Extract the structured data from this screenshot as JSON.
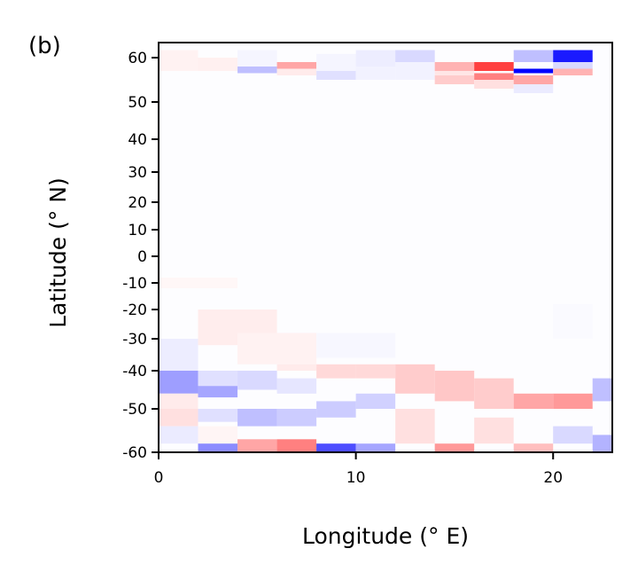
{
  "panel_label": "(b)",
  "chart_data": {
    "type": "heatmap",
    "title": "",
    "xlabel": "Longitude (° E)",
    "ylabel": "Latitude (° N)",
    "xlim": [
      0,
      23
    ],
    "ylim": [
      -60,
      64
    ],
    "y_scale": "nonlinear (equatorial band compressed, polar bands stretched)",
    "x_ticks": [
      {
        "value": 0,
        "label": "0"
      },
      {
        "value": 10,
        "label": "10"
      },
      {
        "value": 20,
        "label": "20"
      }
    ],
    "y_ticks": [
      {
        "value": 60,
        "label": "60"
      },
      {
        "value": 50,
        "label": "50"
      },
      {
        "value": 40,
        "label": "40"
      },
      {
        "value": 30,
        "label": "30"
      },
      {
        "value": 20,
        "label": "20"
      },
      {
        "value": 10,
        "label": "10"
      },
      {
        "value": 0,
        "label": "0"
      },
      {
        "value": -10,
        "label": "-10"
      },
      {
        "value": -20,
        "label": "-20"
      },
      {
        "value": -30,
        "label": "-30"
      },
      {
        "value": -40,
        "label": "-40"
      },
      {
        "value": -50,
        "label": "-50"
      },
      {
        "value": -60,
        "label": "-60"
      }
    ],
    "colormap": "bwr",
    "color_low": "#0000ff",
    "color_mid": "#ffffff",
    "color_high": "#ff0000",
    "value_range": [
      -1,
      1
    ],
    "grid": false,
    "cells": [
      {
        "lon": [
          0,
          2
        ],
        "lat": [
          57,
          62
        ],
        "v": 0.05
      },
      {
        "lon": [
          2,
          4
        ],
        "lat": [
          57,
          60
        ],
        "v": 0.06
      },
      {
        "lon": [
          4,
          6
        ],
        "lat": [
          56.5,
          58
        ],
        "v": -0.25
      },
      {
        "lon": [
          4,
          6
        ],
        "lat": [
          58,
          62
        ],
        "v": -0.04
      },
      {
        "lon": [
          6,
          8
        ],
        "lat": [
          57.5,
          59
        ],
        "v": 0.35
      },
      {
        "lon": [
          6,
          8
        ],
        "lat": [
          56,
          57.5
        ],
        "v": 0.08
      },
      {
        "lon": [
          8,
          10
        ],
        "lat": [
          55,
          57
        ],
        "v": -0.12
      },
      {
        "lon": [
          8,
          10
        ],
        "lat": [
          57,
          61
        ],
        "v": -0.04
      },
      {
        "lon": [
          10,
          12
        ],
        "lat": [
          58,
          62
        ],
        "v": -0.07
      },
      {
        "lon": [
          10,
          12
        ],
        "lat": [
          55,
          58
        ],
        "v": -0.05
      },
      {
        "lon": [
          12,
          14
        ],
        "lat": [
          59,
          62
        ],
        "v": -0.15
      },
      {
        "lon": [
          12,
          14
        ],
        "lat": [
          55,
          59
        ],
        "v": -0.05
      },
      {
        "lon": [
          14,
          16
        ],
        "lat": [
          57,
          59
        ],
        "v": 0.3
      },
      {
        "lon": [
          14,
          16
        ],
        "lat": [
          54,
          56
        ],
        "v": 0.2
      },
      {
        "lon": [
          14,
          16
        ],
        "lat": [
          56,
          57
        ],
        "v": 0.1
      },
      {
        "lon": [
          16,
          18
        ],
        "lat": [
          57,
          59
        ],
        "v": 0.75
      },
      {
        "lon": [
          16,
          18
        ],
        "lat": [
          55,
          56.5
        ],
        "v": 0.5
      },
      {
        "lon": [
          16,
          18
        ],
        "lat": [
          53,
          55
        ],
        "v": 0.12
      },
      {
        "lon": [
          18,
          20
        ],
        "lat": [
          59,
          62
        ],
        "v": -0.25
      },
      {
        "lon": [
          18,
          20
        ],
        "lat": [
          56.5,
          57.5
        ],
        "v": -1.0
      },
      {
        "lon": [
          18,
          20
        ],
        "lat": [
          54,
          56
        ],
        "v": 0.35
      },
      {
        "lon": [
          18,
          20
        ],
        "lat": [
          52,
          54
        ],
        "v": -0.08
      },
      {
        "lon": [
          20,
          22
        ],
        "lat": [
          59,
          62
        ],
        "v": -0.9
      },
      {
        "lon": [
          20,
          22
        ],
        "lat": [
          57.5,
          59
        ],
        "v": -0.15
      },
      {
        "lon": [
          20,
          22
        ],
        "lat": [
          56,
          57.5
        ],
        "v": 0.3
      },
      {
        "lon": [
          0,
          4
        ],
        "lat": [
          -12,
          -8
        ],
        "v": 0.03
      },
      {
        "lon": [
          2,
          6
        ],
        "lat": [
          -32,
          -20
        ],
        "v": 0.07
      },
      {
        "lon": [
          4,
          8
        ],
        "lat": [
          -38,
          -28
        ],
        "v": 0.05
      },
      {
        "lon": [
          8,
          12
        ],
        "lat": [
          -36,
          -28
        ],
        "v": -0.03
      },
      {
        "lon": [
          20,
          22
        ],
        "lat": [
          -30,
          -18
        ],
        "v": -0.02
      },
      {
        "lon": [
          0,
          2
        ],
        "lat": [
          -40,
          -30
        ],
        "v": -0.07
      },
      {
        "lon": [
          0,
          2
        ],
        "lat": [
          -46,
          -40
        ],
        "v": -0.38
      },
      {
        "lon": [
          0,
          2
        ],
        "lat": [
          -50,
          -46
        ],
        "v": 0.08
      },
      {
        "lon": [
          0,
          2
        ],
        "lat": [
          -54,
          -50
        ],
        "v": 0.12
      },
      {
        "lon": [
          0,
          2
        ],
        "lat": [
          -58,
          -54
        ],
        "v": -0.08
      },
      {
        "lon": [
          2,
          4
        ],
        "lat": [
          -44,
          -40
        ],
        "v": -0.12
      },
      {
        "lon": [
          2,
          4
        ],
        "lat": [
          -47,
          -44
        ],
        "v": -0.35
      },
      {
        "lon": [
          2,
          4
        ],
        "lat": [
          -53,
          -50
        ],
        "v": -0.12
      },
      {
        "lon": [
          2,
          4
        ],
        "lat": [
          -58,
          -54
        ],
        "v": 0.04
      },
      {
        "lon": [
          2,
          4
        ],
        "lat": [
          -60,
          -58
        ],
        "v": -0.45
      },
      {
        "lon": [
          4,
          6
        ],
        "lat": [
          -45,
          -40
        ],
        "v": -0.15
      },
      {
        "lon": [
          4,
          6
        ],
        "lat": [
          -54,
          -50
        ],
        "v": -0.25
      },
      {
        "lon": [
          4,
          6
        ],
        "lat": [
          -60,
          -57
        ],
        "v": 0.35
      },
      {
        "lon": [
          6,
          8
        ],
        "lat": [
          -40,
          -38
        ],
        "v": 0.08
      },
      {
        "lon": [
          6,
          8
        ],
        "lat": [
          -46,
          -42
        ],
        "v": -0.1
      },
      {
        "lon": [
          6,
          8
        ],
        "lat": [
          -54,
          -50
        ],
        "v": -0.2
      },
      {
        "lon": [
          6,
          8
        ],
        "lat": [
          -60,
          -57
        ],
        "v": 0.5
      },
      {
        "lon": [
          8,
          10
        ],
        "lat": [
          -42,
          -38
        ],
        "v": 0.15
      },
      {
        "lon": [
          8,
          10
        ],
        "lat": [
          -52,
          -48
        ],
        "v": -0.2
      },
      {
        "lon": [
          8,
          10
        ],
        "lat": [
          -60,
          -58
        ],
        "v": -0.7
      },
      {
        "lon": [
          10,
          12
        ],
        "lat": [
          -42,
          -38
        ],
        "v": 0.15
      },
      {
        "lon": [
          10,
          12
        ],
        "lat": [
          -50,
          -46
        ],
        "v": -0.18
      },
      {
        "lon": [
          10,
          12
        ],
        "lat": [
          -60,
          -58
        ],
        "v": -0.35
      },
      {
        "lon": [
          12,
          14
        ],
        "lat": [
          -46,
          -38
        ],
        "v": 0.2
      },
      {
        "lon": [
          12,
          14
        ],
        "lat": [
          -58,
          -50
        ],
        "v": 0.12
      },
      {
        "lon": [
          14,
          16
        ],
        "lat": [
          -48,
          -40
        ],
        "v": 0.22
      },
      {
        "lon": [
          14,
          16
        ],
        "lat": [
          -60,
          -58
        ],
        "v": 0.4
      },
      {
        "lon": [
          16,
          18
        ],
        "lat": [
          -50,
          -42
        ],
        "v": 0.2
      },
      {
        "lon": [
          16,
          18
        ],
        "lat": [
          -58,
          -52
        ],
        "v": 0.12
      },
      {
        "lon": [
          18,
          20
        ],
        "lat": [
          -50,
          -46
        ],
        "v": 0.35
      },
      {
        "lon": [
          18,
          20
        ],
        "lat": [
          -60,
          -58
        ],
        "v": 0.25
      },
      {
        "lon": [
          20,
          22
        ],
        "lat": [
          -50,
          -46
        ],
        "v": 0.4
      },
      {
        "lon": [
          20,
          22
        ],
        "lat": [
          -58,
          -54
        ],
        "v": -0.15
      },
      {
        "lon": [
          22,
          23
        ],
        "lat": [
          -48,
          -42
        ],
        "v": -0.25
      },
      {
        "lon": [
          22,
          23
        ],
        "lat": [
          -60,
          -56
        ],
        "v": -0.3
      }
    ]
  }
}
